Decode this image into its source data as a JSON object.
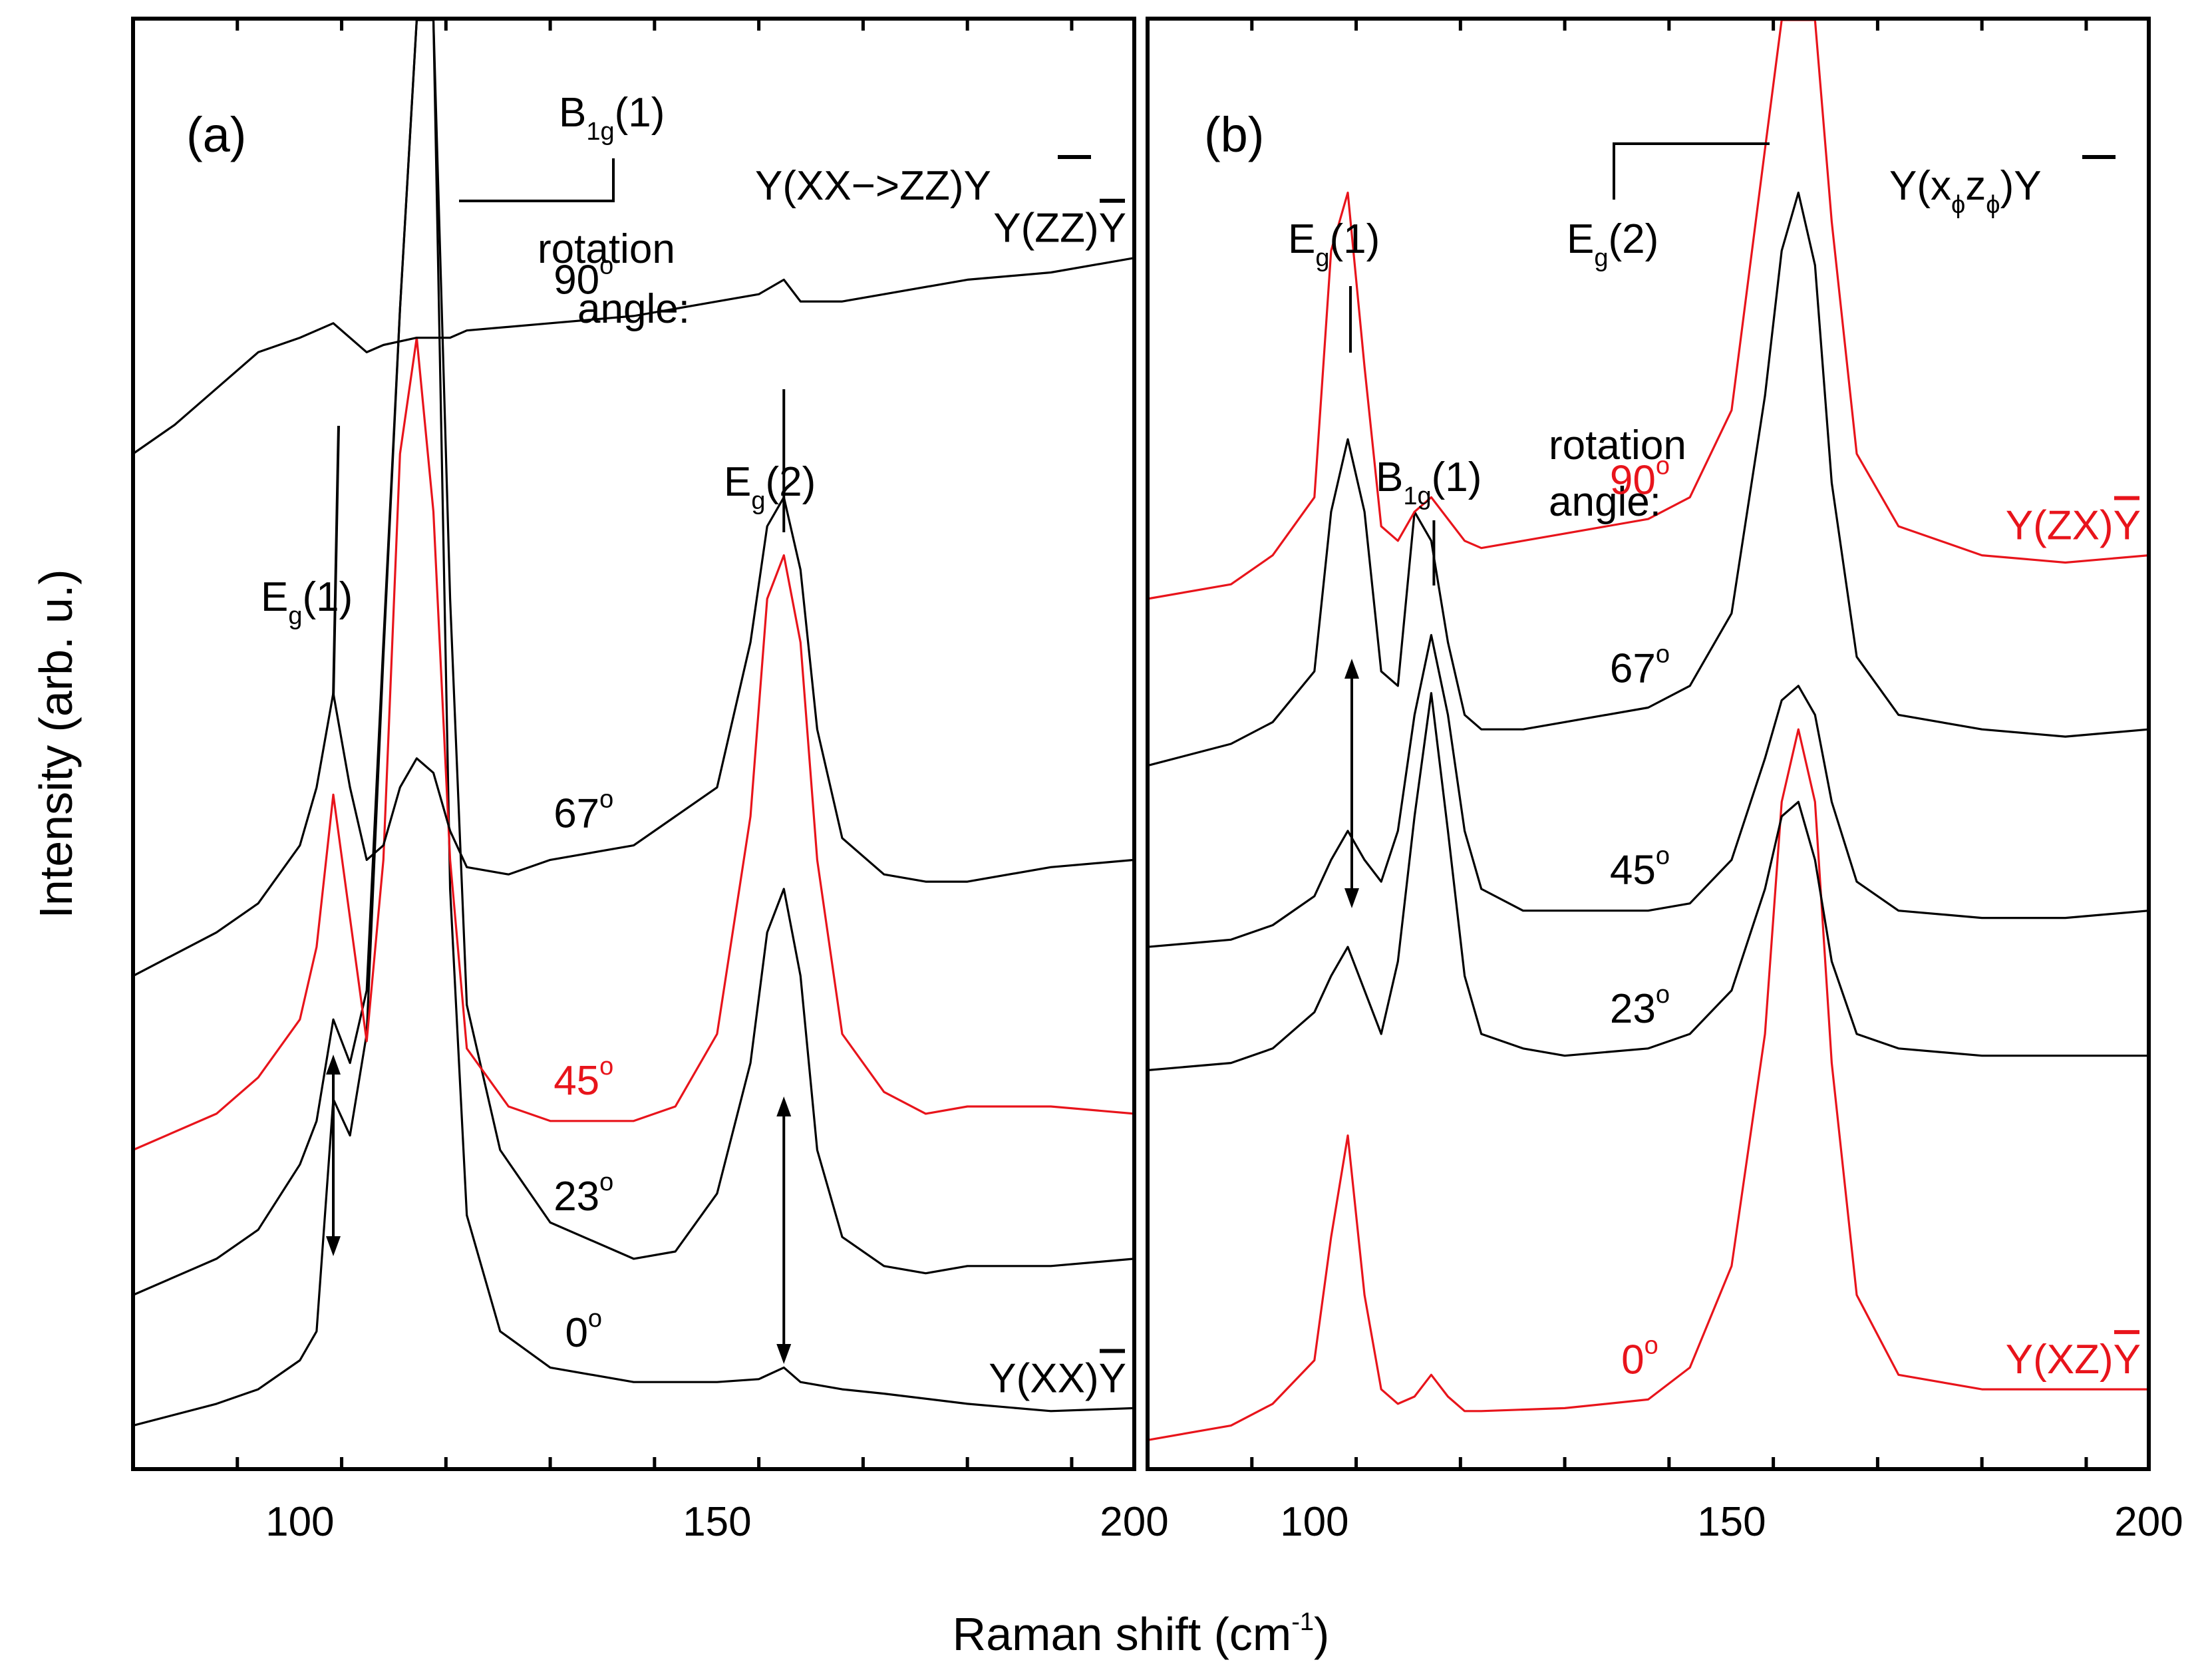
{
  "chart_data": [
    {
      "panel": "a",
      "type": "line",
      "panel_label": "(a)",
      "configuration_label": {
        "base": "Y(XX−>ZZ)",
        "bar": "Y"
      },
      "rotation_label": [
        "rotation",
        "angle:"
      ],
      "xlabel": "Raman shift (cm",
      "xlabel_sup": "-1",
      "xlabel_end": ")",
      "ylabel": "Intensity (arb. u.)",
      "xlim": [
        80,
        200
      ],
      "ylim": [
        0,
        10
      ],
      "xticks": [
        100,
        150,
        200
      ],
      "xtick_labels": [
        "100",
        "150",
        "200"
      ],
      "color_black": "#000000",
      "color_red": "#e8141b",
      "peaks": [
        {
          "label": "E",
          "sub": "g",
          "tail": "(1)",
          "x": 104
        },
        {
          "label": "B",
          "sub": "1g",
          "tail": "(1)",
          "x": 114
        },
        {
          "label": "E",
          "sub": "g",
          "tail": "(2)",
          "x": 158
        }
      ],
      "series": [
        {
          "name": "0°",
          "color": "black",
          "end_label": {
            "base": "Y(XX)",
            "bar": "Y"
          },
          "x": [
            80,
            90,
            95,
            100,
            102,
            104,
            106,
            108,
            110,
            112,
            114,
            116,
            118,
            120,
            124,
            130,
            140,
            150,
            155,
            158,
            160,
            165,
            170,
            180,
            190,
            200
          ],
          "values": [
            0.3,
            0.45,
            0.55,
            0.75,
            0.95,
            2.55,
            2.3,
            3.0,
            5.6,
            8.0,
            12.0,
            12.0,
            4.0,
            1.75,
            0.95,
            0.7,
            0.6,
            0.6,
            0.62,
            0.7,
            0.6,
            0.55,
            0.52,
            0.45,
            0.4,
            0.42
          ]
        },
        {
          "name": "23°",
          "color": "black",
          "x": [
            80,
            90,
            95,
            100,
            102,
            104,
            106,
            108,
            110,
            112,
            114,
            116,
            118,
            120,
            124,
            130,
            140,
            145,
            150,
            154,
            156,
            158,
            160,
            162,
            165,
            170,
            175,
            180,
            190,
            200
          ],
          "values": [
            1.2,
            1.45,
            1.65,
            2.1,
            2.4,
            3.1,
            2.8,
            3.3,
            5.7,
            8.0,
            12.0,
            12.0,
            6.0,
            3.2,
            2.2,
            1.7,
            1.45,
            1.5,
            1.9,
            2.8,
            3.7,
            4.0,
            3.4,
            2.2,
            1.6,
            1.4,
            1.35,
            1.4,
            1.4,
            1.45
          ]
        },
        {
          "name": "45°",
          "color": "red",
          "x": [
            80,
            90,
            95,
            100,
            102,
            104,
            106,
            108,
            110,
            112,
            114,
            116,
            118,
            120,
            125,
            130,
            140,
            145,
            150,
            154,
            156,
            158,
            160,
            162,
            165,
            170,
            175,
            180,
            190,
            200
          ],
          "values": [
            2.2,
            2.45,
            2.7,
            3.1,
            3.6,
            4.65,
            3.8,
            2.95,
            4.2,
            7.0,
            7.8,
            6.6,
            4.2,
            2.9,
            2.5,
            2.4,
            2.4,
            2.5,
            3.0,
            4.5,
            6.0,
            6.3,
            5.7,
            4.2,
            3.0,
            2.6,
            2.45,
            2.5,
            2.5,
            2.45
          ]
        },
        {
          "name": "67°",
          "color": "black",
          "x": [
            80,
            90,
            95,
            100,
            102,
            104,
            106,
            108,
            110,
            112,
            114,
            116,
            118,
            120,
            125,
            130,
            140,
            150,
            154,
            156,
            158,
            160,
            162,
            165,
            170,
            175,
            180,
            190,
            200
          ],
          "values": [
            3.4,
            3.7,
            3.9,
            4.3,
            4.7,
            5.35,
            4.7,
            4.2,
            4.3,
            4.7,
            4.9,
            4.8,
            4.4,
            4.15,
            4.1,
            4.2,
            4.3,
            4.7,
            5.7,
            6.5,
            6.7,
            6.2,
            5.1,
            4.35,
            4.1,
            4.05,
            4.05,
            4.15,
            4.2
          ]
        },
        {
          "name": "90°",
          "color": "black",
          "end_label": {
            "base": "Y(ZZ)",
            "bar": "Y"
          },
          "x": [
            80,
            85,
            90,
            95,
            100,
            104,
            108,
            110,
            114,
            118,
            120,
            130,
            140,
            150,
            155,
            158,
            160,
            165,
            170,
            180,
            190,
            200
          ],
          "values": [
            7.0,
            7.2,
            7.45,
            7.7,
            7.8,
            7.9,
            7.7,
            7.75,
            7.8,
            7.8,
            7.85,
            7.9,
            7.95,
            8.05,
            8.1,
            8.2,
            8.05,
            8.05,
            8.1,
            8.2,
            8.25,
            8.35
          ]
        }
      ]
    },
    {
      "panel": "b",
      "type": "line",
      "panel_label": "(b)",
      "configuration_label": {
        "base": "Y(x",
        "phi": "ϕ",
        "mid": "z",
        "end": ")",
        "bar": "Y"
      },
      "rotation_label": [
        "rotation",
        "angle:"
      ],
      "xlim": [
        80,
        200
      ],
      "ylim": [
        0,
        10
      ],
      "xticks": [
        100,
        150,
        200
      ],
      "xtick_labels": [
        "100",
        "150",
        "200"
      ],
      "peaks": [
        {
          "label": "E",
          "sub": "g",
          "tail": "(1)",
          "x": 104
        },
        {
          "label": "B",
          "sub": "1g",
          "tail": "(1)",
          "x": 114
        },
        {
          "label": "E",
          "sub": "g",
          "tail": "(2)",
          "x": 158
        }
      ],
      "series": [
        {
          "name": "0°",
          "color": "red",
          "end_label": {
            "base": "Y(XZ)",
            "bar": "Y"
          },
          "x": [
            80,
            90,
            95,
            100,
            102,
            104,
            106,
            108,
            110,
            112,
            114,
            116,
            118,
            120,
            130,
            140,
            145,
            150,
            154,
            156,
            158,
            160,
            162,
            165,
            170,
            180,
            190,
            200
          ],
          "values": [
            0.2,
            0.3,
            0.45,
            0.75,
            1.6,
            2.3,
            1.2,
            0.55,
            0.45,
            0.5,
            0.65,
            0.5,
            0.4,
            0.4,
            0.42,
            0.48,
            0.7,
            1.4,
            3.0,
            4.6,
            5.1,
            4.6,
            2.8,
            1.2,
            0.65,
            0.55,
            0.55,
            0.55
          ]
        },
        {
          "name": "23°",
          "color": "black",
          "x": [
            80,
            90,
            95,
            100,
            102,
            104,
            106,
            108,
            110,
            112,
            114,
            116,
            118,
            120,
            125,
            130,
            140,
            145,
            150,
            154,
            156,
            158,
            160,
            162,
            165,
            170,
            180,
            190,
            200
          ],
          "values": [
            2.75,
            2.8,
            2.9,
            3.15,
            3.4,
            3.6,
            3.3,
            3.0,
            3.5,
            4.5,
            5.35,
            4.4,
            3.4,
            3.0,
            2.9,
            2.85,
            2.9,
            3.0,
            3.3,
            4.0,
            4.5,
            4.6,
            4.2,
            3.5,
            3.0,
            2.9,
            2.85,
            2.85,
            2.85
          ]
        },
        {
          "name": "45°",
          "color": "black",
          "x": [
            80,
            90,
            95,
            100,
            102,
            104,
            106,
            108,
            110,
            112,
            114,
            116,
            118,
            120,
            125,
            130,
            140,
            145,
            150,
            154,
            156,
            158,
            160,
            162,
            165,
            170,
            180,
            190,
            200
          ],
          "values": [
            3.6,
            3.65,
            3.75,
            3.95,
            4.2,
            4.4,
            4.2,
            4.05,
            4.4,
            5.2,
            5.75,
            5.2,
            4.4,
            4.0,
            3.85,
            3.85,
            3.85,
            3.9,
            4.2,
            4.9,
            5.3,
            5.4,
            5.2,
            4.6,
            4.05,
            3.85,
            3.8,
            3.8,
            3.85
          ]
        },
        {
          "name": "67°",
          "color": "black",
          "x": [
            80,
            90,
            95,
            100,
            102,
            104,
            106,
            108,
            110,
            112,
            114,
            116,
            118,
            120,
            125,
            130,
            140,
            145,
            150,
            154,
            156,
            158,
            160,
            162,
            165,
            170,
            180,
            190,
            200
          ],
          "values": [
            4.85,
            5.0,
            5.15,
            5.5,
            6.6,
            7.1,
            6.6,
            5.5,
            5.4,
            6.6,
            6.4,
            5.7,
            5.2,
            5.1,
            5.1,
            5.15,
            5.25,
            5.4,
            5.9,
            7.4,
            8.4,
            8.8,
            8.3,
            6.8,
            5.6,
            5.2,
            5.1,
            5.05,
            5.1
          ]
        },
        {
          "name": "90°",
          "color": "red",
          "end_label": {
            "base": "Y(ZX)",
            "bar": "Y"
          },
          "x": [
            80,
            90,
            95,
            100,
            102,
            104,
            106,
            108,
            110,
            112,
            114,
            116,
            118,
            120,
            125,
            130,
            140,
            145,
            150,
            154,
            156,
            158,
            160,
            162,
            165,
            170,
            180,
            190,
            200
          ],
          "values": [
            6.0,
            6.1,
            6.3,
            6.7,
            8.4,
            8.8,
            7.6,
            6.5,
            6.4,
            6.6,
            6.7,
            6.55,
            6.4,
            6.35,
            6.4,
            6.45,
            6.55,
            6.7,
            7.3,
            9.1,
            10.3,
            10.9,
            10.2,
            8.6,
            7.0,
            6.5,
            6.3,
            6.25,
            6.3
          ]
        }
      ]
    }
  ]
}
